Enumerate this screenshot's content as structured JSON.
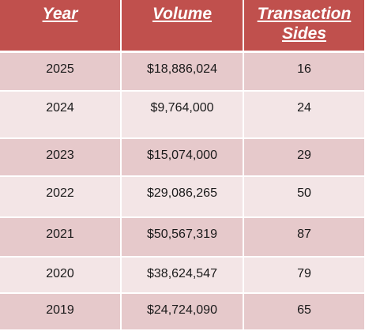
{
  "table": {
    "headers": [
      "Year",
      "Volume",
      "Transaction Sides"
    ],
    "rows": [
      {
        "year": "2025",
        "volume": "$18,886,024",
        "sides": "16"
      },
      {
        "year": "2024",
        "volume": "$9,764,000",
        "sides": "24"
      },
      {
        "year": "2023",
        "volume": "$15,074,000",
        "sides": "29"
      },
      {
        "year": "2022",
        "volume": "$29,086,265",
        "sides": "50"
      },
      {
        "year": "2021",
        "volume": "$50,567,319",
        "sides": "87"
      },
      {
        "year": "2020",
        "volume": "$38,624,547",
        "sides": "79"
      },
      {
        "year": "2019",
        "volume": "$24,724,090",
        "sides": "65"
      }
    ]
  },
  "colors": {
    "header_background": "#c0504d",
    "header_text": "#ffffff",
    "row_band_dark": "#e6c9cb",
    "row_band_light": "#f3e5e6"
  }
}
